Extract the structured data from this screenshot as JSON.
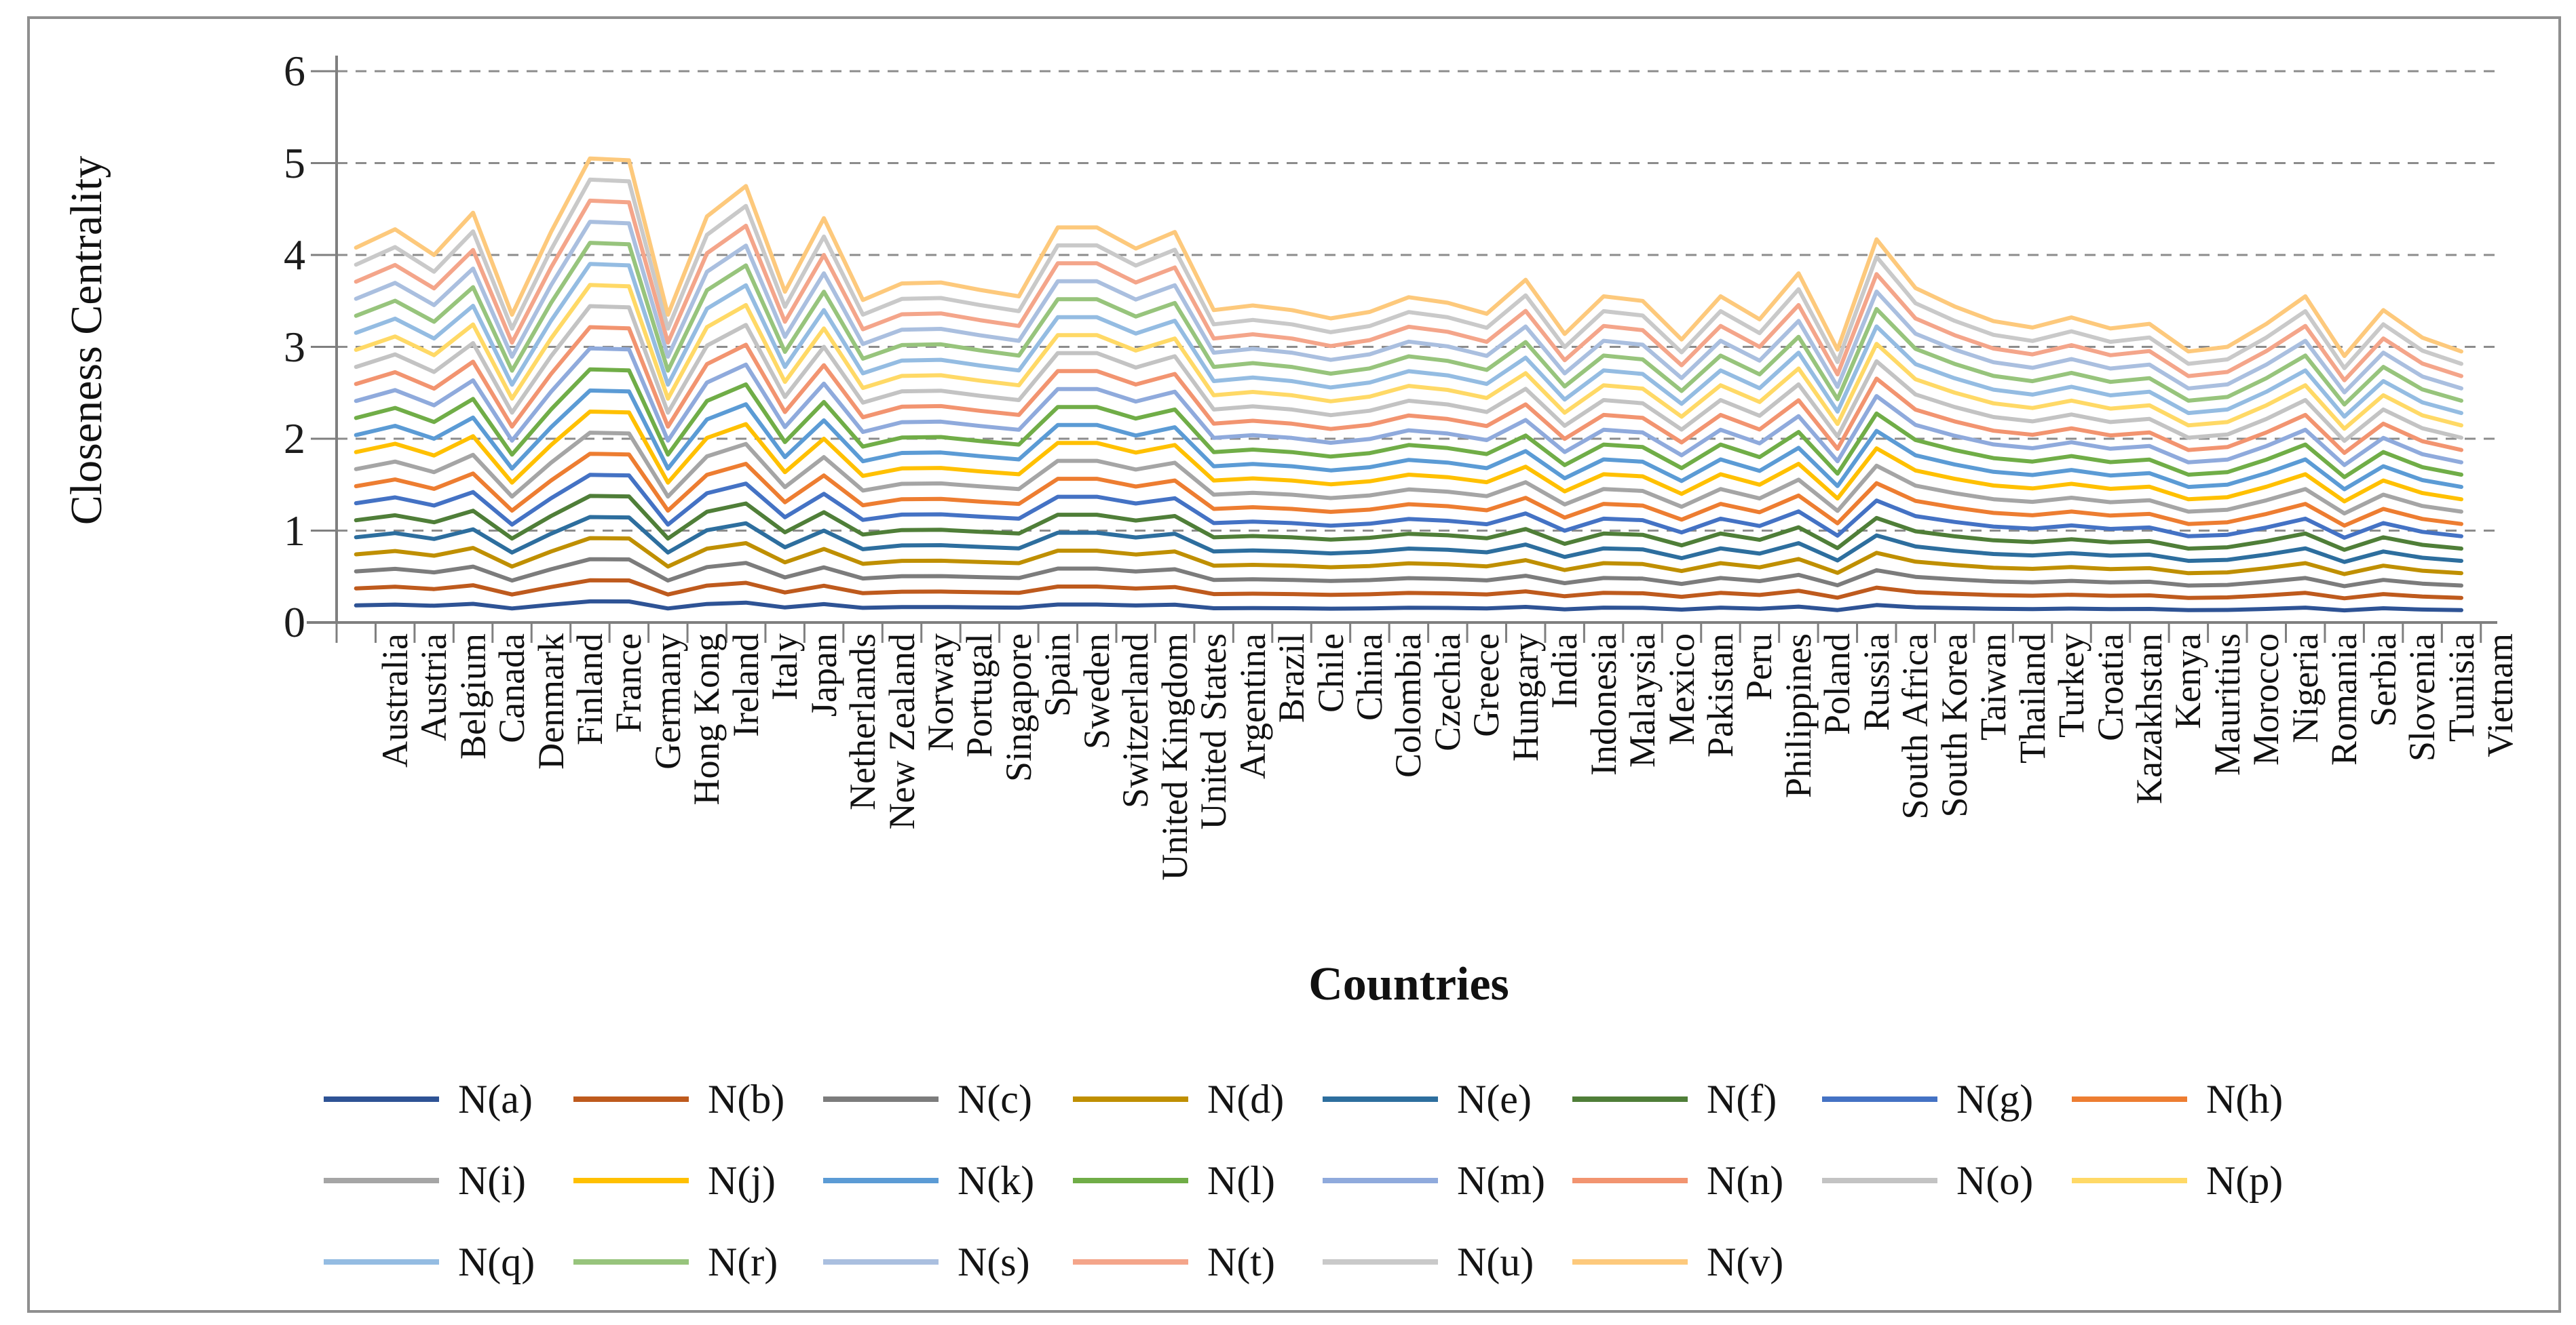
{
  "figure": {
    "background": "#ffffff",
    "border_color": "#8f8f8f",
    "axis_color": "#7f7f7f",
    "grid_color": "#8c8c8c",
    "text_color": "#111111"
  },
  "chart_data": {
    "type": "line",
    "title": "",
    "ylabel": "Closeness Centrality",
    "xlabel": "Countries",
    "ylim": [
      0,
      6
    ],
    "y_ticks": [
      0,
      1,
      2,
      3,
      4,
      5,
      6
    ],
    "grid": "horizontal-dashed",
    "legend_position": "bottom",
    "legend_rows": [
      8,
      8,
      6
    ],
    "categories": [
      "Australia",
      "Austria",
      "Belgium",
      "Canada",
      "Denmark",
      "Finland",
      "France",
      "Germany",
      "Hong Kong",
      "Ireland",
      "Italy",
      "Japan",
      "Netherlands",
      "New Zealand",
      "Norway",
      "Portugal",
      "Singapore",
      "Spain",
      "Sweden",
      "Switzerland",
      "United Kingdom",
      "United States",
      "Argentina",
      "Brazil",
      "Chile",
      "China",
      "Colombia",
      "Czechia",
      "Greece",
      "Hungary",
      "India",
      "Indonesia",
      "Malaysia",
      "Mexico",
      "Pakistan",
      "Peru",
      "Philippines",
      "Poland",
      "Russia",
      "South Africa",
      "South Korea",
      "Taiwan",
      "Thailand",
      "Turkey",
      "Croatia",
      "Kazakhstan",
      "Kenya",
      "Mauritius",
      "Morocco",
      "Nigeria",
      "Romania",
      "Serbia",
      "Slovenia",
      "Tunisia",
      "Vietnam"
    ],
    "series_model": "fan of 22 evenly spaced lines: value(series,country) = top_line_values[country] * series.scale",
    "top_line_values": [
      4.08,
      4.28,
      4.0,
      4.46,
      3.35,
      4.25,
      5.05,
      5.03,
      3.35,
      4.42,
      4.75,
      3.6,
      4.4,
      3.51,
      3.69,
      3.7,
      3.62,
      3.55,
      4.3,
      4.3,
      4.07,
      4.25,
      3.4,
      3.45,
      3.4,
      3.31,
      3.38,
      3.54,
      3.48,
      3.36,
      3.73,
      3.14,
      3.55,
      3.5,
      3.08,
      3.55,
      3.3,
      3.8,
      2.97,
      4.17,
      3.64,
      3.44,
      3.28,
      3.21,
      3.32,
      3.2,
      3.25,
      2.95,
      3.0,
      3.25,
      3.55,
      2.9,
      3.4,
      3.1,
      2.95
    ],
    "series": [
      {
        "name": "N(a)",
        "color": "#2E5395",
        "scale": 0.0455
      },
      {
        "name": "N(b)",
        "color": "#BE5A1D",
        "scale": 0.0909
      },
      {
        "name": "N(c)",
        "color": "#7C7C7C",
        "scale": 0.1364
      },
      {
        "name": "N(d)",
        "color": "#BF8F00",
        "scale": 0.1818
      },
      {
        "name": "N(e)",
        "color": "#2D6E9E",
        "scale": 0.2273
      },
      {
        "name": "N(f)",
        "color": "#4F7E38",
        "scale": 0.2727
      },
      {
        "name": "N(g)",
        "color": "#4472C4",
        "scale": 0.3182
      },
      {
        "name": "N(h)",
        "color": "#ED7D31",
        "scale": 0.3636
      },
      {
        "name": "N(i)",
        "color": "#A5A5A5",
        "scale": 0.4091
      },
      {
        "name": "N(j)",
        "color": "#FFC000",
        "scale": 0.4545
      },
      {
        "name": "N(k)",
        "color": "#5B9BD5",
        "scale": 0.5
      },
      {
        "name": "N(l)",
        "color": "#70AD47",
        "scale": 0.5455
      },
      {
        "name": "N(m)",
        "color": "#8FAADC",
        "scale": 0.5909
      },
      {
        "name": "N(n)",
        "color": "#F29470",
        "scale": 0.6364
      },
      {
        "name": "N(o)",
        "color": "#C3C3C3",
        "scale": 0.6818
      },
      {
        "name": "N(p)",
        "color": "#FFD966",
        "scale": 0.7273
      },
      {
        "name": "N(q)",
        "color": "#94BCE2",
        "scale": 0.7727
      },
      {
        "name": "N(r)",
        "color": "#97C47C",
        "scale": 0.8182
      },
      {
        "name": "N(s)",
        "color": "#AABFDF",
        "scale": 0.8636
      },
      {
        "name": "N(t)",
        "color": "#F4A58A",
        "scale": 0.9091
      },
      {
        "name": "N(u)",
        "color": "#C9C9C9",
        "scale": 0.9545
      },
      {
        "name": "N(v)",
        "color": "#FDC97C",
        "scale": 1.0
      }
    ]
  }
}
